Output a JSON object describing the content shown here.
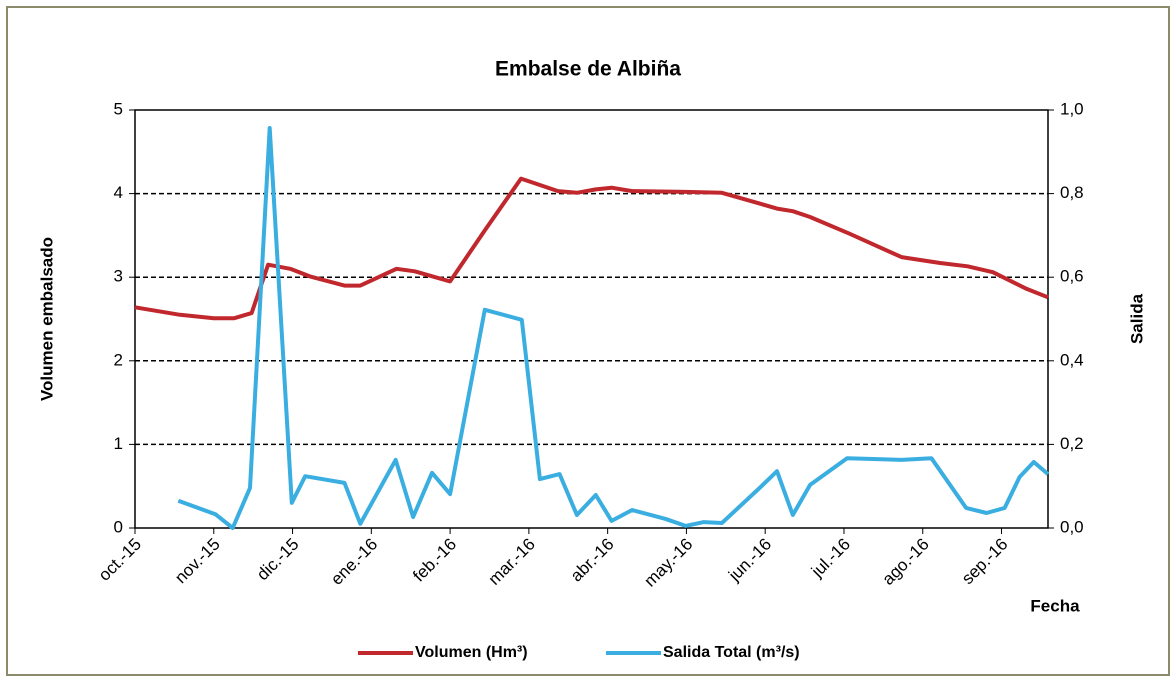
{
  "chart_data": {
    "type": "line",
    "title": "Embalse de Albiña",
    "y_label": "Volumen embalsado",
    "y2_label": "Salida",
    "x_label": "Fecha",
    "xlim": [
      0,
      11.59
    ],
    "xticks": [
      {
        "value": 0,
        "label": "oct.-15"
      },
      {
        "value": 1,
        "label": "nov.-15"
      },
      {
        "value": 2,
        "label": "dic.-15"
      },
      {
        "value": 3,
        "label": "ene.-16"
      },
      {
        "value": 4,
        "label": "feb.-16"
      },
      {
        "value": 5,
        "label": "mar.-16"
      },
      {
        "value": 6,
        "label": "abr.-16"
      },
      {
        "value": 7,
        "label": "may.-16"
      },
      {
        "value": 8,
        "label": "jun.-16"
      },
      {
        "value": 9,
        "label": "jul.-16"
      },
      {
        "value": 10,
        "label": "ago.-16"
      },
      {
        "value": 11,
        "label": "sep.-16"
      }
    ],
    "ylim": [
      0,
      5
    ],
    "yticks": [
      0,
      1,
      2,
      3,
      4,
      5
    ],
    "y2lim": [
      0,
      1
    ],
    "y2ticks": [
      {
        "value": 0,
        "label": "0,0"
      },
      {
        "value": 0.2,
        "label": "0,2"
      },
      {
        "value": 0.4,
        "label": "0,4"
      },
      {
        "value": 0.6,
        "label": "0,6"
      },
      {
        "value": 0.8,
        "label": "0,8"
      },
      {
        "value": 1,
        "label": "1,0"
      }
    ],
    "grid": true,
    "legend": "bottom",
    "series": [
      {
        "name": "Volumen (Hm³)",
        "color": "#c0282d",
        "axis": "y",
        "x": [
          0,
          0.57,
          1.0,
          1.26,
          1.48,
          1.69,
          1.97,
          2.22,
          2.66,
          2.86,
          3.32,
          3.55,
          4.0,
          4.44,
          4.9,
          5.37,
          5.61,
          5.85,
          6.05,
          6.31,
          6.99,
          7.45,
          7.93,
          8.15,
          8.35,
          8.57,
          9.07,
          9.73,
          10.22,
          10.57,
          10.89,
          11.32,
          11.59
        ],
        "values": [
          2.64,
          2.55,
          2.51,
          2.51,
          2.57,
          3.15,
          3.1,
          3.01,
          2.9,
          2.9,
          3.1,
          3.07,
          2.95,
          3.56,
          4.18,
          4.03,
          4.01,
          4.05,
          4.07,
          4.03,
          4.02,
          4.01,
          3.88,
          3.82,
          3.79,
          3.72,
          3.52,
          3.24,
          3.17,
          3.13,
          3.06,
          2.86,
          2.76
        ]
      },
      {
        "name": "Salida Total (m³/s)",
        "color": "#3aaee0",
        "axis": "y2",
        "x": [
          0.55,
          1.02,
          1.24,
          1.46,
          1.71,
          1.99,
          2.16,
          2.66,
          2.86,
          3.31,
          3.53,
          3.77,
          4.0,
          4.44,
          4.91,
          5.14,
          5.39,
          5.61,
          5.85,
          6.05,
          6.31,
          6.73,
          6.99,
          7.22,
          7.45,
          7.93,
          8.15,
          8.35,
          8.57,
          9.04,
          9.73,
          10.11,
          10.55,
          10.81,
          11.04,
          11.23,
          11.41,
          11.59
        ],
        "values": [
          0.065,
          0.033,
          0.0,
          0.096,
          0.957,
          0.06,
          0.124,
          0.108,
          0.01,
          0.163,
          0.026,
          0.132,
          0.081,
          0.522,
          0.498,
          0.117,
          0.129,
          0.031,
          0.079,
          0.017,
          0.043,
          0.022,
          0.005,
          0.014,
          0.012,
          0.096,
          0.136,
          0.031,
          0.103,
          0.167,
          0.163,
          0.167,
          0.048,
          0.036,
          0.048,
          0.122,
          0.158,
          0.129
        ]
      }
    ]
  }
}
